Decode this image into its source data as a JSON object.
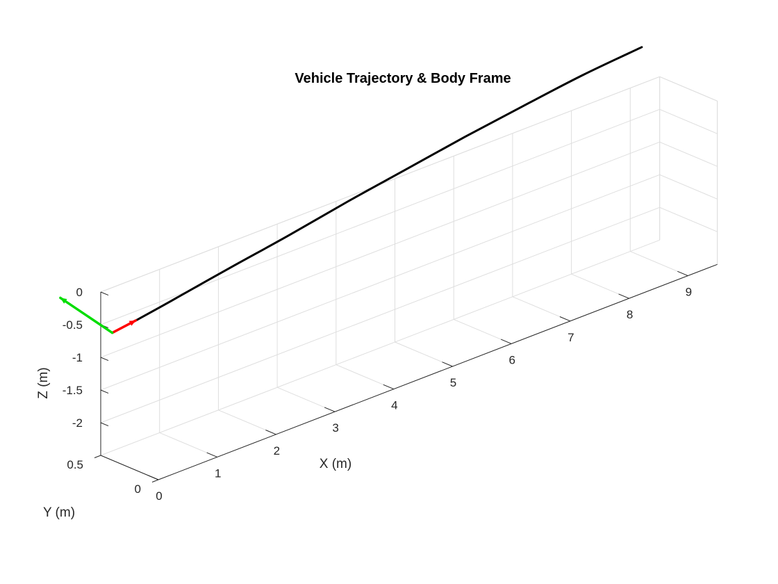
{
  "chart_data": {
    "type": "line",
    "title": "Vehicle Trajectory & Body Frame",
    "xlabel": "X (m)",
    "ylabel": "Y (m)",
    "zlabel": "Z (m)",
    "xlim": [
      0,
      9.5
    ],
    "ylim": [
      0,
      0.5
    ],
    "zlim": [
      -2.5,
      0
    ],
    "x_ticks": [
      0,
      1,
      2,
      3,
      4,
      5,
      6,
      7,
      8,
      9
    ],
    "y_ticks": [
      0,
      0.5
    ],
    "z_ticks": [
      0,
      -0.5,
      -1,
      -1.5,
      -2
    ],
    "x_tick_labels": [
      "0",
      "1",
      "2",
      "3",
      "4",
      "5",
      "6",
      "7",
      "8",
      "9"
    ],
    "y_tick_labels": [
      "0",
      "0.5"
    ],
    "z_tick_labels": [
      "0",
      "-0.5",
      "-1",
      "-1.5",
      "-2"
    ],
    "grid": true,
    "view": "3d",
    "series": [
      {
        "color": "#000000",
        "x": [
          0.4,
          1.0,
          2.0,
          3.0,
          4.0,
          5.0,
          6.0,
          7.0,
          8.0,
          9.0
        ],
        "y": [
          0.4,
          0.4,
          0.4,
          0.4,
          0.4,
          0.4,
          0.4,
          0.4,
          0.4,
          0.4
        ],
        "z": [
          -0.5,
          -0.41,
          -0.25,
          -0.1,
          0.07,
          0.22,
          0.37,
          0.5,
          0.62,
          0.7
        ]
      }
    ],
    "body_frame": {
      "origin": [
        0,
        0.4,
        -0.55
      ],
      "x_axis": {
        "color": "#ff0000",
        "end": [
          0.4,
          0.4,
          -0.5
        ]
      },
      "y_axis": {
        "color": "#00dd00",
        "end": [
          0,
          0.85,
          -0.35
        ]
      }
    }
  }
}
